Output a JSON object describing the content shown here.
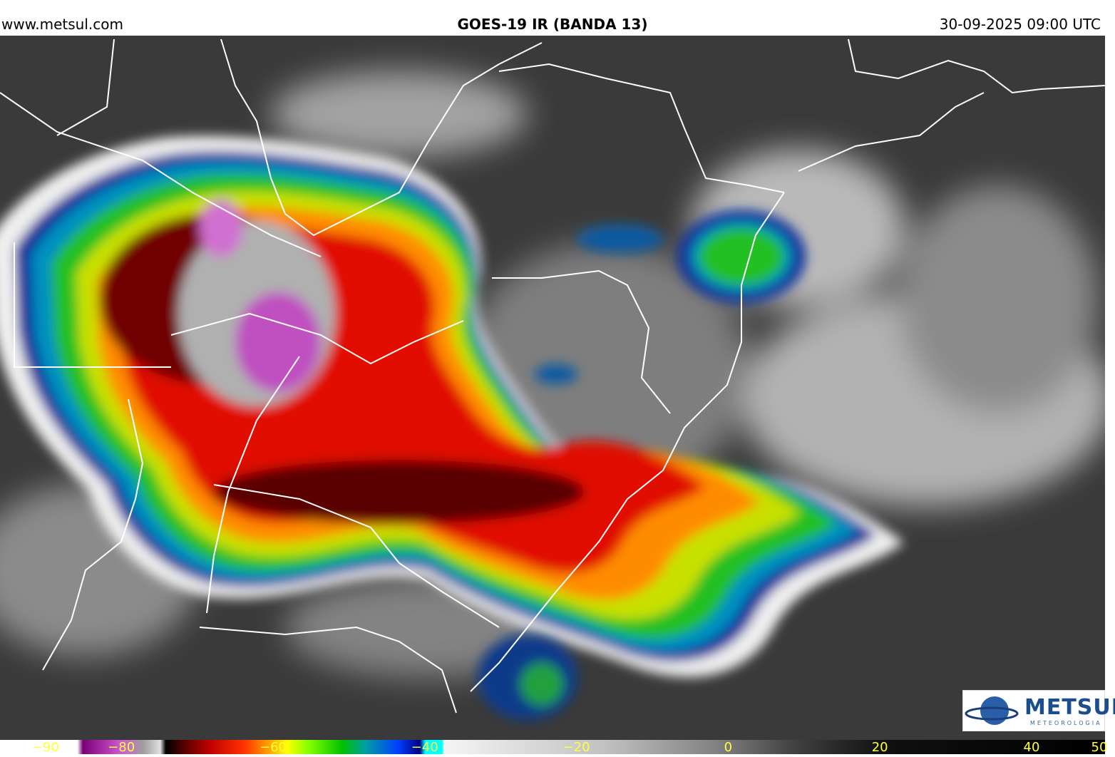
{
  "header": {
    "site": "www.metsul.com",
    "title": "GOES-19 IR (BANDA 13)",
    "timestamp": "30-09-2025 09:00 UTC"
  },
  "logo": {
    "name": "METSUL",
    "subtitle": "METEOROLOGIA"
  },
  "colorbar": {
    "range": [
      -96,
      51
    ],
    "ticks": [
      {
        "value": -90,
        "label": "−90"
      },
      {
        "value": -80,
        "label": "−80"
      },
      {
        "value": -60,
        "label": "−60"
      },
      {
        "value": -40,
        "label": "−40"
      },
      {
        "value": -20,
        "label": "−20"
      },
      0,
      20,
      40,
      50
    ]
  }
}
